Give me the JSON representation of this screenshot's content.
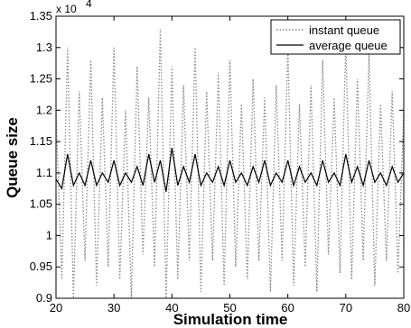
{
  "chart_data": {
    "type": "line",
    "xlabel": "Simulation time",
    "ylabel": "Queue size",
    "scale_multiplier": "x 10",
    "scale_exponent": "4",
    "xlim": [
      20,
      80
    ],
    "ylim": [
      0.9,
      1.35
    ],
    "x_ticks": [
      20,
      30,
      40,
      50,
      60,
      70,
      80
    ],
    "y_ticks": [
      0.9,
      0.95,
      1,
      1.05,
      1.1,
      1.15,
      1.2,
      1.25,
      1.3,
      1.35
    ],
    "legend_position": "top-right",
    "series": [
      {
        "name": "instant queue",
        "style": "dotted",
        "color": "#888888",
        "x": [
          20,
          21,
          22,
          23,
          24,
          25,
          26,
          27,
          28,
          29,
          30,
          31,
          32,
          33,
          34,
          35,
          36,
          37,
          38,
          39,
          40,
          41,
          42,
          43,
          44,
          45,
          46,
          47,
          48,
          49,
          50,
          51,
          52,
          53,
          54,
          55,
          56,
          57,
          58,
          59,
          60,
          61,
          62,
          63,
          64,
          65,
          66,
          67,
          68,
          69,
          70,
          71,
          72,
          73,
          74,
          75,
          76,
          77,
          78,
          79,
          80
        ],
        "y": [
          1.2,
          0.93,
          1.3,
          0.9,
          1.23,
          0.96,
          1.28,
          0.92,
          1.22,
          0.95,
          1.3,
          0.93,
          1.2,
          0.9,
          1.27,
          0.97,
          1.22,
          0.95,
          1.33,
          0.9,
          1.27,
          0.93,
          1.24,
          0.96,
          1.3,
          0.91,
          1.23,
          0.96,
          1.26,
          0.92,
          1.28,
          0.95,
          1.21,
          0.93,
          1.25,
          0.96,
          1.22,
          0.91,
          1.24,
          0.96,
          1.3,
          0.92,
          1.21,
          0.95,
          1.24,
          0.91,
          1.28,
          0.97,
          1.22,
          0.94,
          1.31,
          0.93,
          1.25,
          0.96,
          1.29,
          0.92,
          1.21,
          0.96,
          1.23,
          0.94,
          1.2
        ]
      },
      {
        "name": "average queue",
        "style": "solid",
        "color": "#000000",
        "x": [
          20,
          21,
          22,
          23,
          24,
          25,
          26,
          27,
          28,
          29,
          30,
          31,
          32,
          33,
          34,
          35,
          36,
          37,
          38,
          39,
          40,
          41,
          42,
          43,
          44,
          45,
          46,
          47,
          48,
          49,
          50,
          51,
          52,
          53,
          54,
          55,
          56,
          57,
          58,
          59,
          60,
          61,
          62,
          63,
          64,
          65,
          66,
          67,
          68,
          69,
          70,
          71,
          72,
          73,
          74,
          75,
          76,
          77,
          78,
          79,
          80
        ],
        "y": [
          1.09,
          1.075,
          1.13,
          1.08,
          1.1,
          1.08,
          1.12,
          1.08,
          1.1,
          1.085,
          1.12,
          1.08,
          1.1,
          1.085,
          1.11,
          1.08,
          1.13,
          1.085,
          1.12,
          1.07,
          1.14,
          1.08,
          1.11,
          1.085,
          1.13,
          1.08,
          1.1,
          1.085,
          1.11,
          1.08,
          1.12,
          1.085,
          1.1,
          1.08,
          1.11,
          1.085,
          1.12,
          1.08,
          1.1,
          1.085,
          1.12,
          1.08,
          1.11,
          1.085,
          1.1,
          1.08,
          1.12,
          1.085,
          1.1,
          1.08,
          1.13,
          1.085,
          1.11,
          1.08,
          1.12,
          1.085,
          1.1,
          1.08,
          1.11,
          1.085,
          1.1
        ]
      }
    ]
  }
}
